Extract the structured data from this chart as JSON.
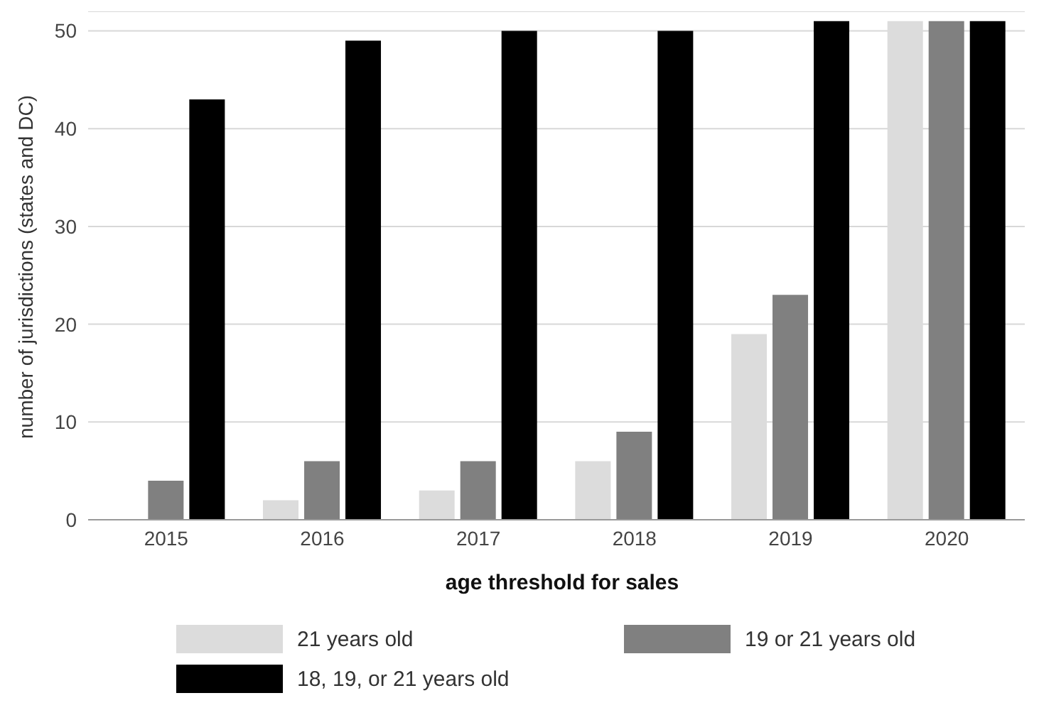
{
  "chart_data": {
    "type": "bar",
    "xlabel": "age threshold for sales",
    "ylabel": "number of jurisdictions (states and DC)",
    "categories": [
      "2015",
      "2016",
      "2017",
      "2018",
      "2019",
      "2020"
    ],
    "series": [
      {
        "name": "21 years old",
        "color": "#dcdcdc",
        "values": [
          0,
          2,
          3,
          6,
          19,
          51
        ]
      },
      {
        "name": "19 or 21 years old",
        "color": "#808080",
        "values": [
          4,
          6,
          6,
          9,
          23,
          51
        ]
      },
      {
        "name": "18, 19, or 21 years old",
        "color": "#000000",
        "values": [
          43,
          49,
          50,
          50,
          51,
          51
        ]
      }
    ],
    "ylim": [
      0,
      52
    ],
    "yticks": [
      0,
      10,
      20,
      30,
      40,
      50
    ],
    "grid": "y",
    "legend": "bottom"
  }
}
